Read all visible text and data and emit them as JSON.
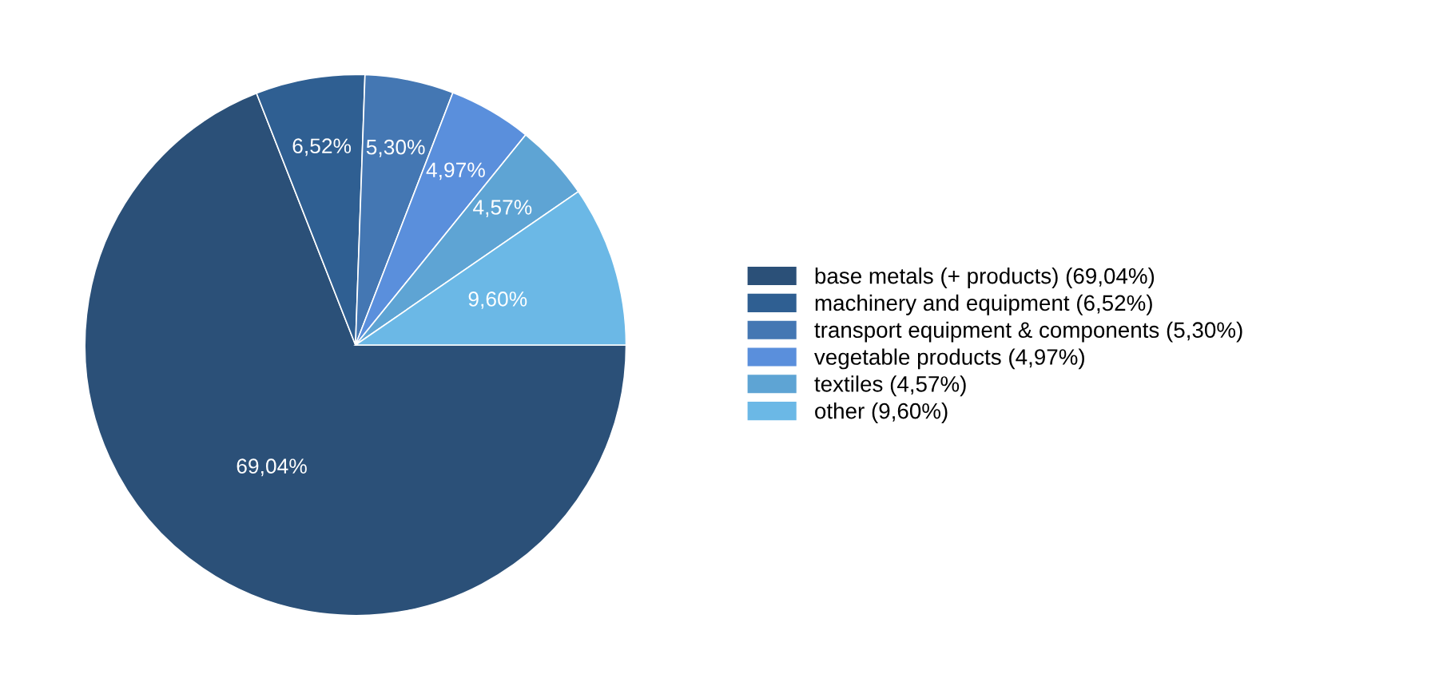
{
  "chart_data": {
    "type": "pie",
    "categories": [
      "base metals (+ products) (69,04%)",
      "machinery and equipment (6,52%)",
      "transport equipment & components (5,30%)",
      "vegetable products (4,97%)",
      "textiles (4,57%)",
      "other (9,60%)"
    ],
    "values": [
      69.04,
      6.52,
      5.3,
      4.97,
      4.57,
      9.6
    ],
    "value_labels": [
      "69,04%",
      "6,52%",
      "5,30%",
      "4,97%",
      "4,57%",
      "9,60%"
    ],
    "colors": [
      "#2b5078",
      "#2f5f92",
      "#4477b3",
      "#5a8fdc",
      "#5ea4d4",
      "#6bb8e6"
    ],
    "legend": "right"
  }
}
